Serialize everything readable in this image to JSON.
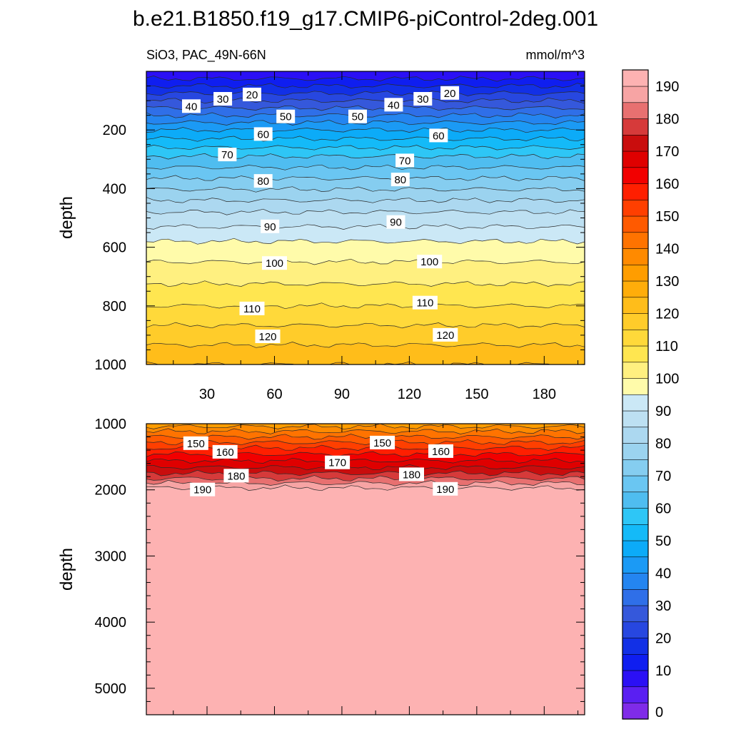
{
  "chart_data": {
    "type": "contour",
    "title": "b.e21.B1850.f19_g17.CMIP6-piControl-2deg.001",
    "left_subtitle": "SiO3, PAC_49N-66N",
    "right_subtitle": "mmol/m^3",
    "x_tick_labels": [
      "30",
      "60",
      "90",
      "120",
      "150",
      "180"
    ],
    "x_ticks": [
      30,
      60,
      90,
      120,
      150,
      180
    ],
    "xlim": [
      3,
      198
    ],
    "panels": [
      {
        "id": "upper",
        "ylabel": "depth",
        "ylim": [
          0,
          1000
        ],
        "y_ticks": [
          200,
          400,
          600,
          800,
          1000
        ],
        "y_tick_labels": [
          "200",
          "400",
          "600",
          "800",
          "1000"
        ],
        "profile_depths": [
          0,
          20,
          40,
          60,
          80,
          100,
          120,
          140,
          160,
          180,
          200,
          230,
          260,
          290,
          320,
          350,
          380,
          410,
          440,
          470,
          500,
          530,
          560,
          590,
          620,
          650,
          680,
          710,
          740,
          770,
          800,
          840,
          880,
          920,
          960,
          1000
        ],
        "profile_values": [
          6,
          9,
          13,
          17,
          21,
          25,
          29,
          33,
          37,
          41,
          45,
          50,
          55,
          60,
          64,
          68,
          72,
          76,
          80,
          84,
          87,
          90,
          93,
          96,
          98,
          100,
          102,
          104,
          106,
          108,
          110,
          113,
          116,
          119,
          122,
          125
        ],
        "contour_labels": [
          {
            "text": "20",
            "x": 50,
            "depth": 80
          },
          {
            "text": "30",
            "x": 37,
            "depth": 95
          },
          {
            "text": "40",
            "x": 23,
            "depth": 120
          },
          {
            "text": "50",
            "x": 65,
            "depth": 155
          },
          {
            "text": "60",
            "x": 55,
            "depth": 215
          },
          {
            "text": "70",
            "x": 39,
            "depth": 285
          },
          {
            "text": "80",
            "x": 55,
            "depth": 375
          },
          {
            "text": "90",
            "x": 58,
            "depth": 530
          },
          {
            "text": "100",
            "x": 60,
            "depth": 655
          },
          {
            "text": "110",
            "x": 50,
            "depth": 810
          },
          {
            "text": "120",
            "x": 57,
            "depth": 905
          },
          {
            "text": "20",
            "x": 138,
            "depth": 75
          },
          {
            "text": "30",
            "x": 126,
            "depth": 95
          },
          {
            "text": "40",
            "x": 113,
            "depth": 115
          },
          {
            "text": "50",
            "x": 97,
            "depth": 155
          },
          {
            "text": "60",
            "x": 133,
            "depth": 220
          },
          {
            "text": "70",
            "x": 118,
            "depth": 305
          },
          {
            "text": "80",
            "x": 116,
            "depth": 370
          },
          {
            "text": "90",
            "x": 114,
            "depth": 515
          },
          {
            "text": "100",
            "x": 129,
            "depth": 650
          },
          {
            "text": "110",
            "x": 127,
            "depth": 790
          },
          {
            "text": "120",
            "x": 136,
            "depth": 900
          }
        ]
      },
      {
        "id": "lower",
        "ylabel": "depth",
        "ylim": [
          1000,
          5400
        ],
        "y_ticks": [
          1000,
          2000,
          3000,
          4000,
          5000
        ],
        "y_tick_labels": [
          "1000",
          "2000",
          "3000",
          "4000",
          "5000"
        ],
        "profile_depths": [
          1000,
          1100,
          1200,
          1300,
          1400,
          1500,
          1600,
          1700,
          1800,
          1900,
          2000,
          5400
        ],
        "profile_values": [
          132,
          139,
          145,
          151,
          157,
          162,
          167,
          172,
          178,
          185,
          192,
          195
        ],
        "contour_labels": [
          {
            "text": "150",
            "x": 25,
            "depth": 1300
          },
          {
            "text": "160",
            "x": 38,
            "depth": 1430
          },
          {
            "text": "180",
            "x": 43,
            "depth": 1790
          },
          {
            "text": "190",
            "x": 28,
            "depth": 2000
          },
          {
            "text": "170",
            "x": 88,
            "depth": 1590
          },
          {
            "text": "150",
            "x": 108,
            "depth": 1290
          },
          {
            "text": "160",
            "x": 134,
            "depth": 1420
          },
          {
            "text": "180",
            "x": 121,
            "depth": 1770
          },
          {
            "text": "190",
            "x": 136,
            "depth": 1990
          }
        ]
      }
    ],
    "colorbar": {
      "levels": [
        0,
        5,
        10,
        15,
        20,
        25,
        30,
        35,
        40,
        45,
        50,
        55,
        60,
        65,
        70,
        75,
        80,
        85,
        90,
        95,
        100,
        105,
        110,
        115,
        120,
        125,
        130,
        135,
        140,
        145,
        150,
        155,
        160,
        165,
        170,
        175,
        180,
        185,
        190
      ],
      "labels": [
        "0",
        "10",
        "20",
        "30",
        "40",
        "50",
        "60",
        "70",
        "80",
        "90",
        "100",
        "110",
        "120",
        "130",
        "140",
        "150",
        "160",
        "170",
        "180",
        "190"
      ],
      "colors": [
        "#7f2be8",
        "#5a1ff2",
        "#2b10f5",
        "#0f1ef0",
        "#1230e6",
        "#2747e0",
        "#3558db",
        "#2f6fe8",
        "#2485f0",
        "#1b9af5",
        "#0cabf8",
        "#14baf8",
        "#2ec6f6",
        "#4fbdf0",
        "#6ac6f2",
        "#85cdf0",
        "#9bd3ef",
        "#acd8f0",
        "#bde0f2",
        "#cbe8f6",
        "#fffbaa",
        "#fff080",
        "#ffe650",
        "#ffd93a",
        "#ffcc2a",
        "#ffbd1a",
        "#ffad0a",
        "#ff9d00",
        "#ff8a00",
        "#ff7300",
        "#ff5a00",
        "#ff3f00",
        "#ff1f00",
        "#f20000",
        "#df0000",
        "#c90d0d",
        "#d63a3a",
        "#e87070",
        "#f7a4a4",
        "#fdb2b2"
      ]
    }
  }
}
